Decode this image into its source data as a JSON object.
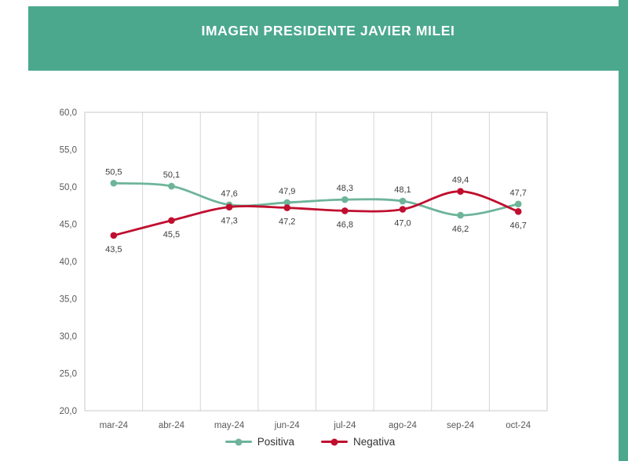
{
  "header": {
    "title": "IMAGEN PRESIDENTE JAVIER MILEI"
  },
  "colors": {
    "banner": "#4ba88d",
    "accent_strip": "#4ba88d",
    "grid": "#d6d6d6",
    "plot_border": "#c9c9c9",
    "axis_text": "#595959",
    "data_label_text": "#3d3d3d"
  },
  "chart_data": {
    "type": "line",
    "title": "IMAGEN PRESIDENTE JAVIER MILEI",
    "categories": [
      "mar-24",
      "abr-24",
      "may-24",
      "jun-24",
      "jul-24",
      "ago-24",
      "sep-24",
      "oct-24"
    ],
    "series": [
      {
        "name": "Positiva",
        "color": "#6eb49a",
        "values": [
          50.5,
          50.1,
          47.6,
          47.9,
          48.3,
          48.1,
          46.2,
          47.7
        ],
        "labels": [
          "50,5",
          "50,1",
          "47,6",
          "47,9",
          "48,3",
          "48,1",
          "46,2",
          "47,7"
        ]
      },
      {
        "name": "Negativa",
        "color": "#c00e2e",
        "values": [
          43.5,
          45.5,
          47.3,
          47.2,
          46.8,
          47.0,
          49.4,
          46.7
        ],
        "labels": [
          "43,5",
          "45,5",
          "47,3",
          "47,2",
          "46,8",
          "47,0",
          "49,4",
          "46,7"
        ]
      }
    ],
    "ylim": [
      20,
      60
    ],
    "ytick_step": 5,
    "ytick_labels": [
      "20,0",
      "25,0",
      "30,0",
      "35,0",
      "40,0",
      "45,0",
      "50,0",
      "55,0",
      "60,0"
    ],
    "decimal_separator": ",",
    "grid": "vertical",
    "legend_position": "bottom",
    "xlabel": "",
    "ylabel": ""
  }
}
